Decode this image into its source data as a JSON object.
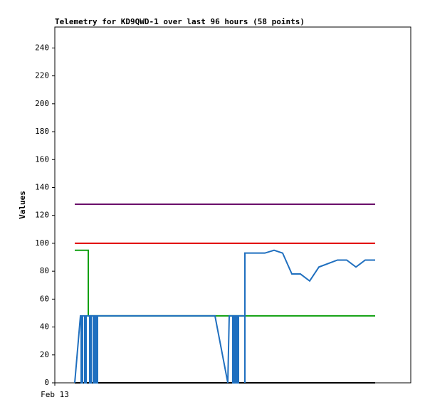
{
  "chart_data": {
    "type": "line",
    "title": "Telemetry for KD9QWD-1 over last 96 hours (58 points)",
    "y_label": "Values",
    "xlim": [
      0,
      100
    ],
    "xticks": [
      {
        "value": 0,
        "label": "Feb 13"
      }
    ],
    "ylim": [
      0,
      255
    ],
    "yticks": [
      0,
      20,
      40,
      60,
      80,
      100,
      120,
      140,
      160,
      180,
      200,
      220,
      240
    ],
    "series": [
      {
        "color": "#6a0f6a",
        "x": [
          5.6,
          90
        ],
        "values": [
          128,
          128
        ]
      },
      {
        "color": "#e00000",
        "x": [
          5.6,
          90
        ],
        "values": [
          100,
          100
        ]
      },
      {
        "color": "#000000",
        "x": [
          5.6,
          90
        ],
        "values": [
          0,
          0
        ]
      },
      {
        "color": "#10a010",
        "x": [
          5.6,
          9.4,
          9.4,
          90
        ],
        "values": [
          95,
          95,
          48,
          48
        ]
      },
      {
        "color": "#1f6fbf",
        "x": [
          5.6,
          7.2,
          7.4,
          7.4,
          7.8,
          7.8,
          8.4,
          8.4,
          8.8,
          8.8,
          9.8,
          9.8,
          10.2,
          10.2,
          10.8,
          10.8,
          11.2,
          11.2,
          11.6,
          11.6,
          12,
          12,
          45,
          48.6,
          49,
          50,
          50,
          50.2,
          50.2,
          50.6,
          50.6,
          50.8,
          50.8,
          51.2,
          51.2,
          51.6,
          51.6,
          53.4,
          53.4,
          53.4,
          59,
          61.6,
          64,
          66.6,
          69,
          71.6,
          74.2,
          79.4,
          82,
          84.6,
          87.2,
          90
        ],
        "values": [
          0,
          48,
          48,
          0,
          0,
          48,
          48,
          0,
          0,
          48,
          48,
          0,
          0,
          48,
          48,
          0,
          0,
          48,
          48,
          0,
          0,
          48,
          48,
          0,
          48,
          48,
          0,
          0,
          48,
          48,
          0,
          0,
          48,
          48,
          0,
          0,
          48,
          48,
          0,
          93,
          93,
          95,
          93,
          78,
          78,
          73,
          83,
          88,
          88,
          83,
          88,
          88
        ]
      }
    ]
  }
}
